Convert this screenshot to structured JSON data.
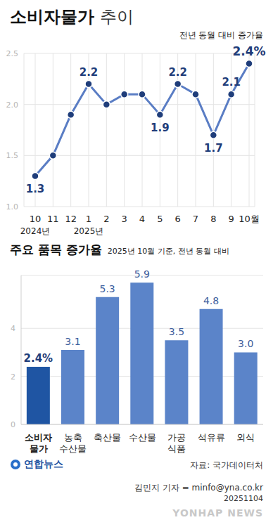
{
  "chart_data": [
    {
      "type": "line",
      "title": "소비자물가 추이",
      "subtitle": "전년 동월 대비 증가율",
      "categories": [
        "10",
        "11",
        "12",
        "1",
        "2",
        "3",
        "4",
        "5",
        "6",
        "7",
        "8",
        "9",
        "10월"
      ],
      "year_labels": [
        {
          "category_index": 0,
          "label": "2024년"
        },
        {
          "category_index": 3,
          "label": "2025년"
        }
      ],
      "values": [
        1.3,
        1.5,
        1.9,
        2.2,
        2.0,
        2.1,
        2.1,
        1.9,
        2.2,
        2.1,
        1.7,
        2.1,
        2.4
      ],
      "value_labels": [
        "1.3",
        null,
        null,
        "2.2",
        null,
        null,
        null,
        "1.9",
        "2.2",
        null,
        "1.7",
        "2.1",
        "2.4%"
      ],
      "color": "#5a7dc4",
      "marker": "circle",
      "ylim": [
        1,
        2.5
      ],
      "yticks": [
        {
          "value": 1,
          "label": "1.0"
        },
        {
          "value": 1.5,
          "label": "1.5"
        },
        {
          "value": 2,
          "label": "2.0"
        },
        {
          "value": 2.5,
          "label": "2.5"
        }
      ],
      "grid": true,
      "data_labels": true
    },
    {
      "type": "bar",
      "title": "주요 품목 증가율",
      "subtitle": "2025년 10월 기준, 전년 동월 대비",
      "categories": [
        "소비자\n물가",
        "농축\n수산물",
        "축산물",
        "수산물",
        "가공\n식품",
        "석유류",
        "외식"
      ],
      "values": [
        2.4,
        3.1,
        5.3,
        5.9,
        3.5,
        4.8,
        3.0
      ],
      "value_labels": [
        "2.4%",
        "3.1",
        "5.3",
        "5.9",
        "3.5",
        "4.8",
        "3.0"
      ],
      "colors": [
        "#1f55a3",
        "#5b84c9",
        "#5b84c9",
        "#5b84c9",
        "#5b84c9",
        "#5b84c9",
        "#5b84c9"
      ],
      "ylim": [
        0,
        6.2
      ],
      "yticks": [
        0,
        2,
        4
      ],
      "grid": true,
      "data_labels": true
    }
  ],
  "footer": {
    "agency": "연합뉴스",
    "source": "자료: 국가데이터처",
    "byline": "김민지 기자 = minfo@yna.co.kr",
    "date": "20251104",
    "watermark": "YONHAP NEWS"
  }
}
